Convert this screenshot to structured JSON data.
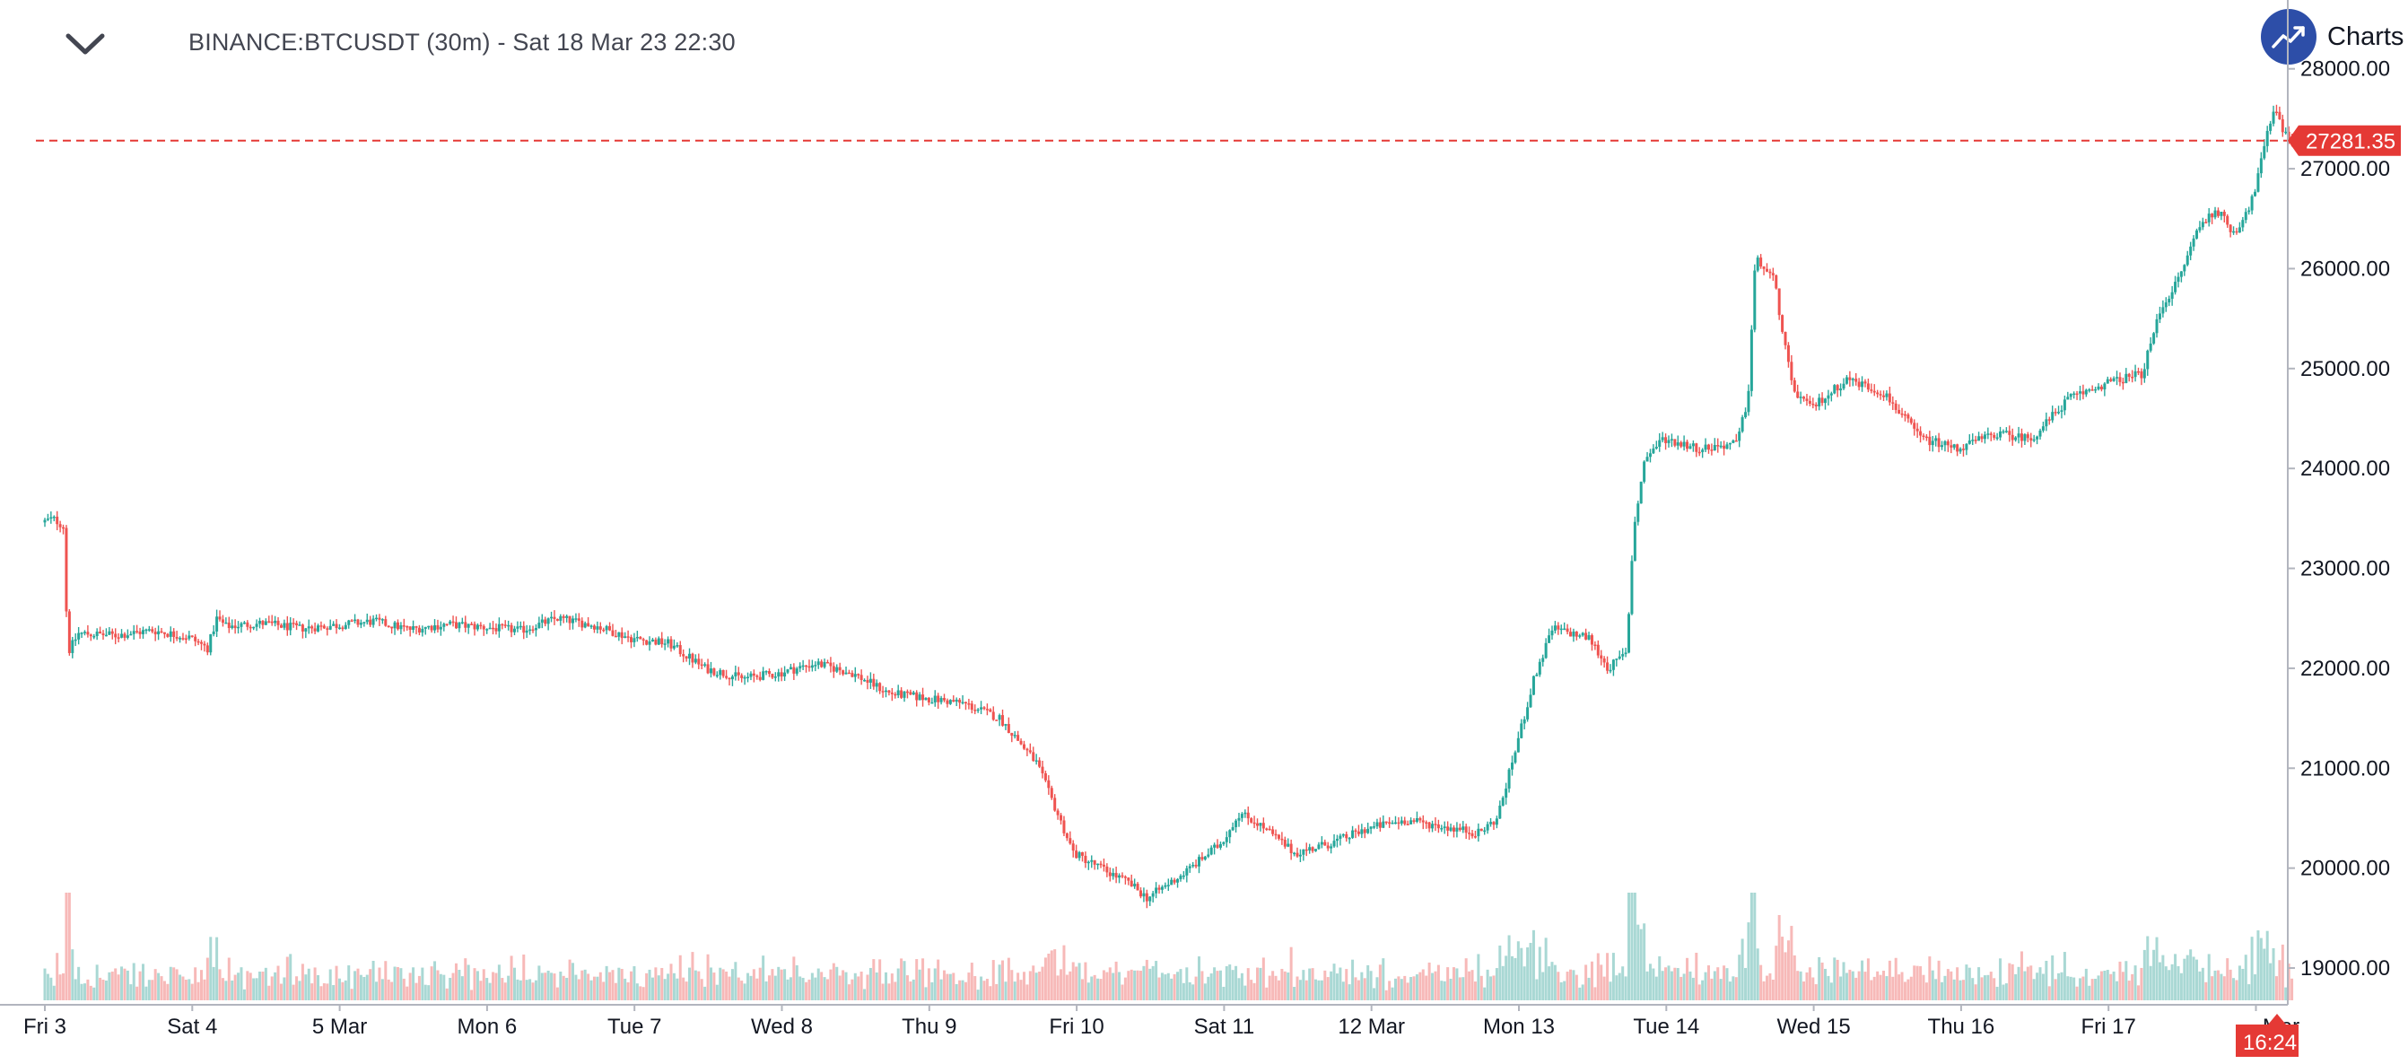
{
  "header": {
    "title": "BINANCE:BTCUSDT (30m) - Sat 18 Mar 23 22:30",
    "brand_label": "Charts p",
    "collapse_icon": "chevron-down-icon",
    "brand_icon": "trending-up-icon"
  },
  "colors": {
    "up": "#26a69a",
    "down": "#ef5350",
    "up_volume": "#a9d8d4",
    "down_volume": "#f7b9b8",
    "last_price": "#e53935",
    "brand": "#2d4ea8"
  },
  "chart_data": {
    "type": "candlestick",
    "symbol": "BINANCE:BTCUSDT",
    "interval": "30m",
    "ylim": [
      18650,
      28150
    ],
    "y_ticks": [
      "28000.00",
      "27000.00",
      "26000.00",
      "25000.00",
      "24000.00",
      "23000.00",
      "22000.00",
      "21000.00",
      "20000.00",
      "19000.00"
    ],
    "x_ticks": [
      "Fri 3",
      "Sat 4",
      "5 Mar",
      "Mon 6",
      "Tue 7",
      "Wed 8",
      "Thu 9",
      "Fri 10",
      "Sat 11",
      "12 Mar",
      "Mon 13",
      "Tue 14",
      "Wed 15",
      "Thu 16",
      "Fri 17",
      "Mar"
    ],
    "last_price": "27281.35",
    "time_label": "16:24",
    "price_path": [
      [
        0,
        23460
      ],
      [
        0.3,
        23500
      ],
      [
        0.6,
        23420
      ],
      [
        0.7,
        22150
      ],
      [
        1,
        22350
      ],
      [
        2,
        22330
      ],
      [
        3,
        22380
      ],
      [
        4,
        22310
      ],
      [
        4.5,
        22200
      ],
      [
        4.75,
        22500
      ],
      [
        5,
        22420
      ],
      [
        6,
        22450
      ],
      [
        7,
        22400
      ],
      [
        8,
        22430
      ],
      [
        9,
        22470
      ],
      [
        10,
        22390
      ],
      [
        11,
        22440
      ],
      [
        12,
        22410
      ],
      [
        13,
        22380
      ],
      [
        14,
        22500
      ],
      [
        15,
        22430
      ],
      [
        16,
        22300
      ],
      [
        17,
        22250
      ],
      [
        18,
        22000
      ],
      [
        19,
        21900
      ],
      [
        20,
        21950
      ],
      [
        21,
        22050
      ],
      [
        22,
        21950
      ],
      [
        23,
        21750
      ],
      [
        24,
        21700
      ],
      [
        25,
        21650
      ],
      [
        26,
        21500
      ],
      [
        27,
        21050
      ],
      [
        27.5,
        20600
      ],
      [
        28,
        20150
      ],
      [
        29,
        19950
      ],
      [
        29.5,
        19850
      ],
      [
        30,
        19700
      ],
      [
        31,
        19950
      ],
      [
        32,
        20250
      ],
      [
        32.5,
        20550
      ],
      [
        33,
        20450
      ],
      [
        34,
        20150
      ],
      [
        35,
        20250
      ],
      [
        36,
        20400
      ],
      [
        37,
        20480
      ],
      [
        38,
        20420
      ],
      [
        39,
        20350
      ],
      [
        39.5,
        20500
      ],
      [
        40,
        21200
      ],
      [
        40.5,
        21900
      ],
      [
        41,
        22400
      ],
      [
        42,
        22300
      ],
      [
        42.5,
        22000
      ],
      [
        43,
        22150
      ],
      [
        43.2,
        23400
      ],
      [
        43.5,
        24100
      ],
      [
        44,
        24300
      ],
      [
        45,
        24200
      ],
      [
        46,
        24250
      ],
      [
        46.3,
        24700
      ],
      [
        46.5,
        26100
      ],
      [
        47,
        25900
      ],
      [
        47.5,
        24800
      ],
      [
        48,
        24600
      ],
      [
        49,
        24900
      ],
      [
        50,
        24750
      ],
      [
        51,
        24300
      ],
      [
        52,
        24200
      ],
      [
        53,
        24350
      ],
      [
        54,
        24300
      ],
      [
        55,
        24700
      ],
      [
        56,
        24850
      ],
      [
        57,
        24950
      ],
      [
        57.5,
        25600
      ],
      [
        58,
        25900
      ],
      [
        58.5,
        26400
      ],
      [
        59,
        26600
      ],
      [
        59.5,
        26350
      ],
      [
        60,
        26700
      ],
      [
        60.3,
        27200
      ],
      [
        60.6,
        27650
      ],
      [
        60.8,
        27400
      ],
      [
        61,
        27281.35
      ]
    ]
  }
}
